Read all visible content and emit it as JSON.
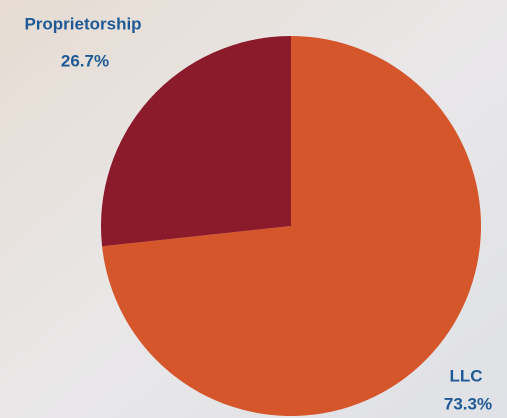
{
  "chart_data": {
    "type": "pie",
    "categories": [
      "LLC",
      "Proprietorship"
    ],
    "values": [
      73.3,
      26.7
    ],
    "value_labels": [
      "73.3%",
      "26.7%"
    ],
    "colors": [
      "#d4562a",
      "#8b1a2b"
    ]
  }
}
